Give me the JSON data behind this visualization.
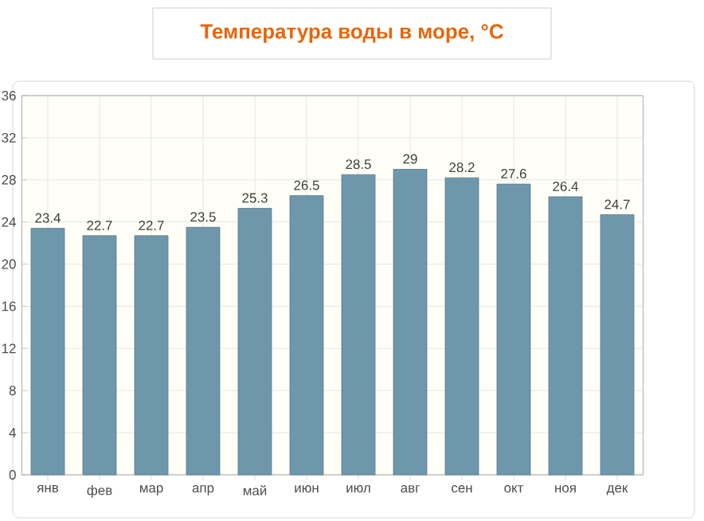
{
  "chart_data": {
    "type": "bar",
    "title": "Температура воды в море, °C",
    "categories": [
      "янв",
      "фев",
      "мар",
      "апр",
      "май",
      "июн",
      "июл",
      "авг",
      "сен",
      "окт",
      "ноя",
      "дек"
    ],
    "values": [
      23.4,
      22.7,
      22.7,
      23.5,
      25.3,
      26.5,
      28.5,
      29,
      28.2,
      27.6,
      26.4,
      24.7
    ],
    "color": "#6f97ac",
    "ylim": [
      0,
      36
    ],
    "yticks": [
      0,
      4,
      8,
      12,
      16,
      20,
      24,
      28,
      32,
      36
    ],
    "grid": true,
    "data_labels": true
  }
}
